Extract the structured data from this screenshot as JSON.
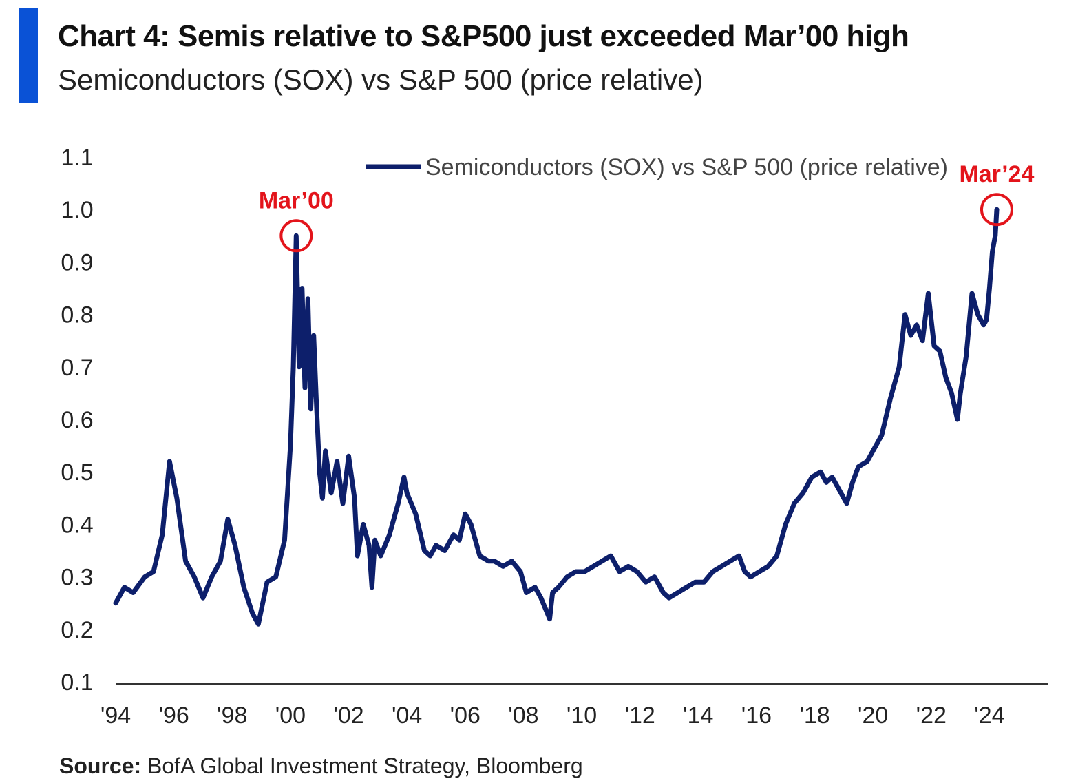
{
  "header": {
    "title": "Chart 4: Semis relative to S&P500 just exceeded Mar’00 high",
    "subtitle": "Semiconductors (SOX) vs S&P 500 (price relative)"
  },
  "footer": {
    "source_label": "Source:",
    "source_text": " BofA Global Investment Strategy, Bloomberg"
  },
  "colors": {
    "accent": "#0a52d6",
    "series": "#0d1f6b",
    "annotation": "#e3141b",
    "axis": "#333333",
    "text": "#222222"
  },
  "chart_data": {
    "type": "line",
    "title": "Chart 4: Semis relative to S&P500 just exceeded Mar’00 high",
    "subtitle": "Semiconductors (SOX) vs S&P 500 (price relative)",
    "xlabel": "",
    "ylabel": "",
    "xlim": [
      1994,
      2026
    ],
    "ylim": [
      0.1,
      1.1
    ],
    "yticks": [
      1.1,
      1.0,
      0.9,
      0.8,
      0.7,
      0.6,
      0.5,
      0.4,
      0.3,
      0.2,
      0.1
    ],
    "ytick_labels": [
      "1.1",
      "1.0",
      "0.9",
      "0.8",
      "0.7",
      "0.6",
      "0.5",
      "0.4",
      "0.3",
      "0.2",
      "0.1"
    ],
    "xticks": [
      1994,
      1996,
      1998,
      2000,
      2002,
      2004,
      2006,
      2008,
      2010,
      2012,
      2014,
      2016,
      2018,
      2020,
      2022,
      2024
    ],
    "xtick_labels": [
      "'94",
      "'96",
      "'98",
      "'00",
      "'02",
      "'04",
      "'06",
      "'08",
      "'10",
      "'12",
      "'14",
      "'16",
      "'18",
      "'20",
      "'22",
      "'24"
    ],
    "grid": false,
    "legend": {
      "position": "top",
      "entries": [
        "Semiconductors (SOX) vs S&P 500 (price relative)"
      ]
    },
    "series": [
      {
        "name": "Semiconductors (SOX) vs S&P 500 (price relative)",
        "x": [
          1994.0,
          1994.3,
          1994.6,
          1995.0,
          1995.3,
          1995.6,
          1995.85,
          1996.1,
          1996.4,
          1996.7,
          1997.0,
          1997.3,
          1997.6,
          1997.85,
          1998.1,
          1998.4,
          1998.7,
          1998.9,
          1999.2,
          1999.5,
          1999.8,
          2000.0,
          2000.1,
          2000.2,
          2000.3,
          2000.4,
          2000.5,
          2000.6,
          2000.7,
          2000.8,
          2000.9,
          2001.0,
          2001.1,
          2001.2,
          2001.4,
          2001.6,
          2001.8,
          2002.0,
          2002.2,
          2002.3,
          2002.5,
          2002.7,
          2002.8,
          2002.9,
          2003.1,
          2003.4,
          2003.7,
          2003.9,
          2004.0,
          2004.3,
          2004.6,
          2004.8,
          2005.0,
          2005.3,
          2005.6,
          2005.8,
          2006.0,
          2006.2,
          2006.5,
          2006.8,
          2007.0,
          2007.3,
          2007.6,
          2007.9,
          2008.1,
          2008.4,
          2008.6,
          2008.9,
          2009.0,
          2009.2,
          2009.5,
          2009.8,
          2010.1,
          2010.4,
          2010.7,
          2011.0,
          2011.3,
          2011.6,
          2011.9,
          2012.2,
          2012.5,
          2012.8,
          2013.0,
          2013.3,
          2013.6,
          2013.9,
          2014.2,
          2014.5,
          2014.8,
          2015.1,
          2015.4,
          2015.6,
          2015.8,
          2016.1,
          2016.4,
          2016.7,
          2017.0,
          2017.3,
          2017.6,
          2017.9,
          2018.2,
          2018.4,
          2018.6,
          2018.9,
          2019.1,
          2019.3,
          2019.5,
          2019.8,
          2020.1,
          2020.3,
          2020.6,
          2020.9,
          2021.1,
          2021.3,
          2021.5,
          2021.7,
          2021.9,
          2022.1,
          2022.3,
          2022.5,
          2022.7,
          2022.9,
          2023.0,
          2023.2,
          2023.4,
          2023.6,
          2023.8,
          2023.9,
          2024.0,
          2024.1,
          2024.2,
          2024.25
        ],
        "y": [
          0.25,
          0.28,
          0.27,
          0.3,
          0.31,
          0.38,
          0.52,
          0.45,
          0.33,
          0.3,
          0.26,
          0.3,
          0.33,
          0.41,
          0.36,
          0.28,
          0.23,
          0.21,
          0.29,
          0.3,
          0.37,
          0.55,
          0.7,
          0.95,
          0.7,
          0.85,
          0.66,
          0.83,
          0.62,
          0.76,
          0.62,
          0.5,
          0.45,
          0.54,
          0.46,
          0.52,
          0.44,
          0.53,
          0.45,
          0.34,
          0.4,
          0.36,
          0.28,
          0.37,
          0.34,
          0.38,
          0.44,
          0.49,
          0.46,
          0.42,
          0.35,
          0.34,
          0.36,
          0.35,
          0.38,
          0.37,
          0.42,
          0.4,
          0.34,
          0.33,
          0.33,
          0.32,
          0.33,
          0.31,
          0.27,
          0.28,
          0.26,
          0.22,
          0.27,
          0.28,
          0.3,
          0.31,
          0.31,
          0.32,
          0.33,
          0.34,
          0.31,
          0.32,
          0.31,
          0.29,
          0.3,
          0.27,
          0.26,
          0.27,
          0.28,
          0.29,
          0.29,
          0.31,
          0.32,
          0.33,
          0.34,
          0.31,
          0.3,
          0.31,
          0.32,
          0.34,
          0.4,
          0.44,
          0.46,
          0.49,
          0.5,
          0.48,
          0.49,
          0.46,
          0.44,
          0.48,
          0.51,
          0.52,
          0.55,
          0.57,
          0.64,
          0.7,
          0.8,
          0.76,
          0.78,
          0.75,
          0.84,
          0.74,
          0.73,
          0.68,
          0.65,
          0.6,
          0.65,
          0.72,
          0.84,
          0.8,
          0.78,
          0.79,
          0.85,
          0.92,
          0.95,
          1.0
        ]
      }
    ],
    "annotations": [
      {
        "label": "Mar’00",
        "x": 2000.2,
        "y": 0.95
      },
      {
        "label": "Mar’24",
        "x": 2024.25,
        "y": 1.0
      }
    ]
  }
}
